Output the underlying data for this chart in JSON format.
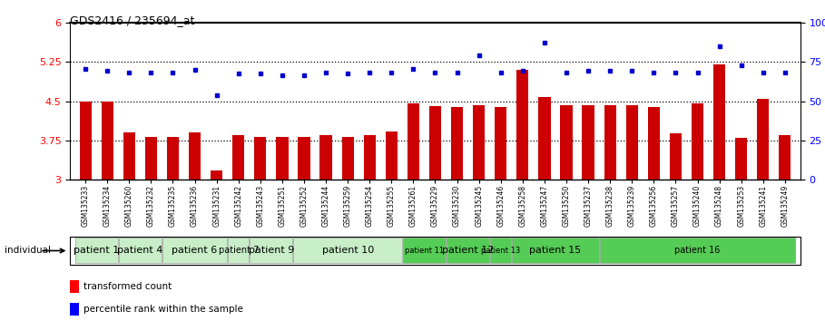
{
  "title": "GDS2416 / 235694_at",
  "samples": [
    "GSM135233",
    "GSM135234",
    "GSM135260",
    "GSM135232",
    "GSM135235",
    "GSM135236",
    "GSM135231",
    "GSM135242",
    "GSM135243",
    "GSM135251",
    "GSM135252",
    "GSM135244",
    "GSM135259",
    "GSM135254",
    "GSM135255",
    "GSM135261",
    "GSM135229",
    "GSM135230",
    "GSM135245",
    "GSM135246",
    "GSM135258",
    "GSM135247",
    "GSM135250",
    "GSM135237",
    "GSM135238",
    "GSM135239",
    "GSM135256",
    "GSM135257",
    "GSM135240",
    "GSM135248",
    "GSM135253",
    "GSM135241",
    "GSM135249"
  ],
  "bar_values": [
    4.5,
    4.5,
    3.9,
    3.82,
    3.82,
    3.9,
    3.18,
    3.85,
    3.82,
    3.82,
    3.82,
    3.85,
    3.82,
    3.85,
    3.92,
    4.45,
    4.4,
    4.38,
    4.42,
    4.38,
    5.1,
    4.58,
    4.43,
    4.42,
    4.42,
    4.43,
    4.38,
    3.88,
    4.45,
    5.2,
    3.8,
    4.55,
    3.85
  ],
  "dot_values": [
    5.12,
    5.08,
    5.05,
    5.05,
    5.05,
    5.1,
    4.62,
    5.02,
    5.02,
    5.0,
    5.0,
    5.05,
    5.02,
    5.05,
    5.05,
    5.12,
    5.05,
    5.05,
    5.38,
    5.05,
    5.08,
    5.62,
    5.05,
    5.08,
    5.08,
    5.08,
    5.05,
    5.05,
    5.05,
    5.55,
    5.18,
    5.05,
    5.05
  ],
  "ylim_left": [
    3.0,
    6.0
  ],
  "yticks_left": [
    3.0,
    3.75,
    4.5,
    5.25,
    6.0
  ],
  "ytick_labels_left": [
    "3",
    "3.75",
    "4.5",
    "5.25",
    "6"
  ],
  "yticks_right": [
    0,
    25,
    50,
    75,
    100
  ],
  "ytick_labels_right": [
    "0",
    "25",
    "50",
    "75",
    "100%"
  ],
  "bar_color": "#cc0000",
  "dot_color": "#0000cc",
  "bg_color": "#ffffff",
  "patient_spans": [
    {
      "label": "patient 1",
      "start": 0,
      "end": 2,
      "color": "#c8eec8",
      "fontsize": 8
    },
    {
      "label": "patient 4",
      "start": 2,
      "end": 4,
      "color": "#c8eec8",
      "fontsize": 8
    },
    {
      "label": "patient 6",
      "start": 4,
      "end": 7,
      "color": "#c8eec8",
      "fontsize": 8
    },
    {
      "label": "patient 7",
      "start": 7,
      "end": 8,
      "color": "#c8eec8",
      "fontsize": 7
    },
    {
      "label": "patient 9",
      "start": 8,
      "end": 10,
      "color": "#c8eec8",
      "fontsize": 8
    },
    {
      "label": "patient 10",
      "start": 10,
      "end": 15,
      "color": "#c8eec8",
      "fontsize": 8
    },
    {
      "label": "patient 11",
      "start": 15,
      "end": 17,
      "color": "#55cc55",
      "fontsize": 6
    },
    {
      "label": "patient 12",
      "start": 17,
      "end": 19,
      "color": "#55cc55",
      "fontsize": 8
    },
    {
      "label": "patient 13",
      "start": 19,
      "end": 20,
      "color": "#55cc55",
      "fontsize": 6
    },
    {
      "label": "patient 15",
      "start": 20,
      "end": 24,
      "color": "#55cc55",
      "fontsize": 8
    },
    {
      "label": "patient 16",
      "start": 24,
      "end": 33,
      "color": "#55cc55",
      "fontsize": 7
    }
  ],
  "individual_label": "individual"
}
